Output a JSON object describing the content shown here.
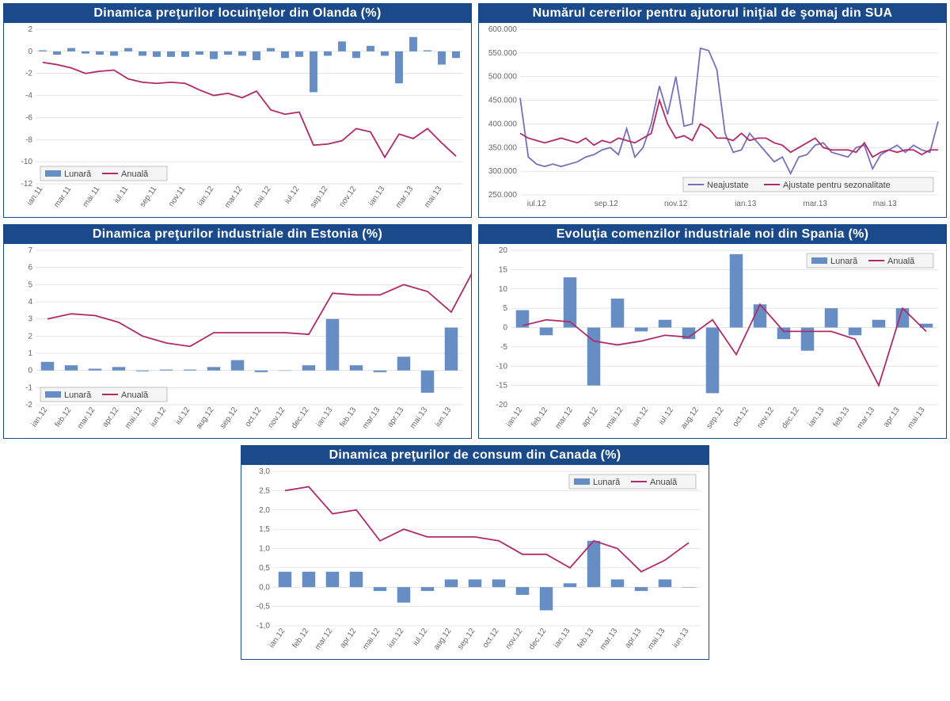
{
  "charts": {
    "olanda": {
      "title": "Dinamica preţurilor locuinţelor din Olanda (%)",
      "type": "bar-line",
      "categories": [
        "ian.11",
        "mar.11",
        "mai.11",
        "iul.11",
        "sep.11",
        "nov.11",
        "ian.12",
        "mar.12",
        "mai.12",
        "iul.12",
        "sep.12",
        "nov.12",
        "ian.13",
        "mar.13",
        "mai.13"
      ],
      "bars": [
        0.1,
        -0.3,
        0.3,
        -0.2,
        -0.3,
        -0.4,
        0.3,
        -0.4,
        -0.5,
        -0.5,
        -0.5,
        -0.3,
        -0.7,
        -0.3,
        -0.4,
        -0.8,
        0.3,
        -0.6,
        -0.5,
        -3.7,
        -0.4,
        0.9,
        -0.6,
        0.5,
        -0.4,
        -2.9,
        1.3,
        0.1,
        -1.2,
        -0.6
      ],
      "line": [
        -1.0,
        -1.2,
        -1.5,
        -2.0,
        -1.8,
        -1.7,
        -2.5,
        -2.8,
        -2.9,
        -2.8,
        -2.9,
        -3.5,
        -4.0,
        -3.8,
        -4.2,
        -3.6,
        -5.3,
        -5.7,
        -5.5,
        -8.5,
        -8.4,
        -8.1,
        -7.0,
        -7.3,
        -9.6,
        -7.5,
        -7.9,
        -7.0,
        -8.3,
        -9.5
      ],
      "ylim": [
        -12,
        2
      ],
      "ystep": 2,
      "legend": [
        "Lunară",
        "Anuală"
      ],
      "legend_pos": "bottom-left",
      "bar_color": "#668ec4",
      "line_color": "#b02a6a"
    },
    "sua": {
      "title": "Numărul cererilor pentru ajutorul iniţial de şomaj din SUA",
      "type": "two-lines",
      "categories": [
        "iul.12",
        "sep.12",
        "nov.12",
        "ian.13",
        "mar.13",
        "mai.13"
      ],
      "x_count": 52,
      "line_a": [
        455000,
        330000,
        315000,
        310000,
        315000,
        310000,
        315000,
        320000,
        330000,
        335000,
        345000,
        350000,
        335000,
        390000,
        330000,
        350000,
        400000,
        480000,
        420000,
        500000,
        395000,
        400000,
        560000,
        555000,
        515000,
        380000,
        340000,
        345000,
        380000,
        360000,
        340000,
        320000,
        330000,
        295000,
        330000,
        335000,
        355000,
        360000,
        340000,
        335000,
        330000,
        350000,
        355000,
        305000,
        335000,
        345000,
        355000,
        340000,
        355000,
        345000,
        340000,
        405000
      ],
      "line_b": [
        380000,
        370000,
        365000,
        360000,
        365000,
        370000,
        365000,
        360000,
        370000,
        355000,
        365000,
        360000,
        370000,
        365000,
        360000,
        370000,
        380000,
        450000,
        400000,
        370000,
        375000,
        365000,
        400000,
        390000,
        370000,
        370000,
        365000,
        380000,
        365000,
        370000,
        370000,
        360000,
        355000,
        340000,
        350000,
        360000,
        370000,
        350000,
        345000,
        345000,
        345000,
        340000,
        360000,
        330000,
        340000,
        345000,
        340000,
        345000,
        345000,
        335000,
        345000,
        345000
      ],
      "ylim": [
        250000,
        600000
      ],
      "ystep": 50000,
      "ylabels": [
        "250.000",
        "300.000",
        "350.000",
        "400.000",
        "450.000",
        "500.000",
        "550.000",
        "600.000"
      ],
      "legend": [
        "Neajustate",
        "Ajustate pentru sezonalitate"
      ],
      "legend_pos": "bottom-right",
      "line_a_color": "#7a6fb8",
      "line_b_color": "#b02a6a"
    },
    "estonia": {
      "title": "Dinamica preţurilor industriale din Estonia (%)",
      "type": "bar-line",
      "categories": [
        "ian.12",
        "feb.12",
        "mar.12",
        "apr.12",
        "mai.12",
        "iun.12",
        "iul.12",
        "aug.12",
        "sep.12",
        "oct.12",
        "nov.12",
        "dec.12",
        "ian.13",
        "feb.13",
        "mar.13",
        "apr.13",
        "mai.13",
        "iun.13"
      ],
      "bars": [
        0.5,
        0.3,
        0.1,
        0.2,
        -0.05,
        0.05,
        0.05,
        0.2,
        0.6,
        -0.1,
        0.0,
        0.3,
        3.0,
        0.3,
        -0.1,
        0.8,
        -1.3,
        2.5
      ],
      "line": [
        3.0,
        3.3,
        3.2,
        2.8,
        2.0,
        1.6,
        1.4,
        2.2,
        2.2,
        2.2,
        2.2,
        2.1,
        4.5,
        4.4,
        4.4,
        5.0,
        4.6,
        3.4
      ],
      "line_extra_end": 6.0,
      "ylim": [
        -2,
        7
      ],
      "ystep": 1,
      "legend": [
        "Lunară",
        "Anuală"
      ],
      "legend_pos": "bottom-left",
      "bar_color": "#668ec4",
      "line_color": "#b02a6a"
    },
    "spania": {
      "title": "Evoluţia comenzilor industriale noi din Spania (%)",
      "type": "bar-line",
      "categories": [
        "ian.12",
        "feb.12",
        "mar.12",
        "apr.12",
        "mai.12",
        "iun.12",
        "iul.12",
        "aug.12",
        "sep.12",
        "oct.12",
        "nov.12",
        "dec.12",
        "ian.13",
        "feb.13",
        "mar.13",
        "apr.13",
        "mai.13"
      ],
      "bars": [
        4.5,
        -2,
        13,
        -15,
        7.5,
        -1,
        2,
        -3,
        -17,
        19,
        6,
        -3,
        -6,
        5,
        -2,
        2,
        5
      ],
      "bars_extra_end": 1,
      "line": [
        0.5,
        2,
        1.5,
        -3.5,
        -4.5,
        -3.5,
        -2,
        -2.5,
        2,
        -7,
        6,
        -1,
        -1,
        -1,
        -3,
        -15,
        5
      ],
      "line_extra_end": -1,
      "ylim": [
        -20,
        20
      ],
      "ystep": 5,
      "legend": [
        "Lunară",
        "Anuală"
      ],
      "legend_pos": "top-right",
      "bar_color": "#668ec4",
      "line_color": "#b02a6a"
    },
    "canada": {
      "title": "Dinamica preţurilor de consum din Canada (%)",
      "type": "bar-line",
      "categories": [
        "ian.12",
        "feb.12",
        "mar.12",
        "apr.12",
        "mai.12",
        "iun.12",
        "iul.12",
        "aug.12",
        "sep.12",
        "oct.12",
        "nov.12",
        "dec.12",
        "ian.13",
        "feb.13",
        "mar.13",
        "apr.13",
        "mai.13",
        "iun.13"
      ],
      "bars": [
        0.4,
        0.4,
        0.4,
        0.4,
        -0.1,
        -0.4,
        -0.1,
        0.2,
        0.2,
        0.2,
        -0.2,
        -0.6,
        0.1,
        1.2,
        0.2,
        -0.1,
        0.2,
        0.0
      ],
      "line": [
        2.5,
        2.6,
        1.9,
        2.0,
        1.2,
        1.5,
        1.3,
        1.3,
        1.3,
        1.2,
        0.85,
        0.85,
        0.5,
        1.2,
        1.0,
        0.4,
        0.7,
        1.15
      ],
      "ylim": [
        -1.0,
        3.0
      ],
      "ystep": 0.5,
      "ylabels": [
        "-1,0",
        "-0,5",
        "0,0",
        "0,5",
        "1,0",
        "1,5",
        "2,0",
        "2,5",
        "3,0"
      ],
      "legend": [
        "Lunară",
        "Anuală"
      ],
      "legend_pos": "top-right",
      "bar_color": "#668ec4",
      "line_color": "#b02a6a"
    }
  },
  "colors": {
    "title_bg": "#1a4a8a",
    "title_fg": "#ffffff",
    "grid": "#cccccc",
    "axis_text": "#666666",
    "legend_bg": "#f5f5f5"
  },
  "title_fontsize": 14,
  "axis_fontsize": 10
}
